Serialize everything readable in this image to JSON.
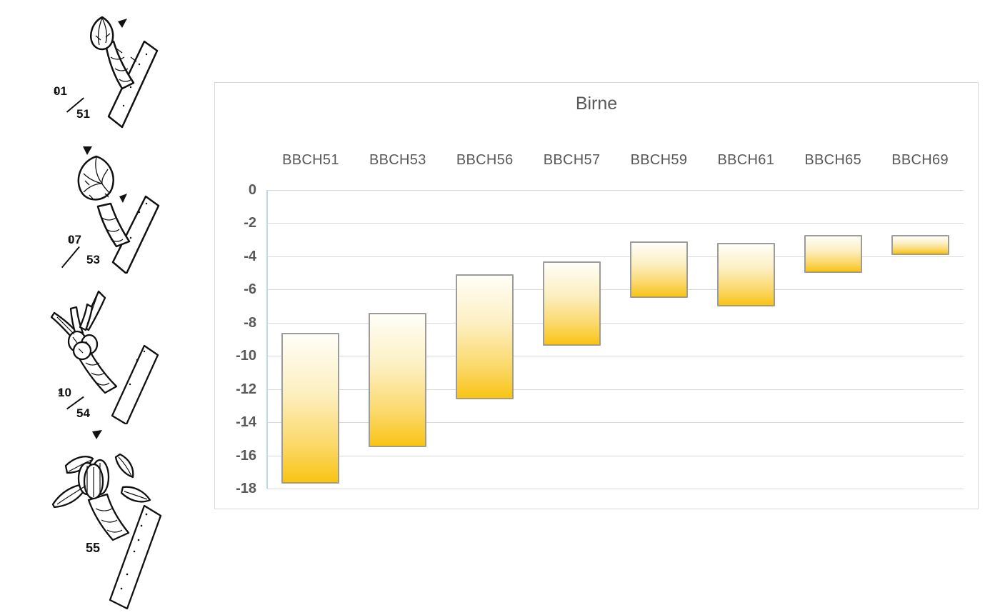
{
  "figure": {
    "description_labels": []
  },
  "stages_panel": {
    "items": [
      {
        "old_code": "01",
        "sup": "1",
        "code": "51",
        "icon": "closed-bud-icon"
      },
      {
        "old_code": "07",
        "sup": "1",
        "code": "53",
        "icon": "swollen-bud-icon"
      },
      {
        "old_code": "10",
        "sup": "1",
        "code": "54",
        "icon": "bud-burst-icon"
      },
      {
        "old_code": "",
        "sup": "",
        "code": "55",
        "icon": "green-bud-cluster-icon"
      }
    ]
  },
  "chart_data": {
    "type": "bar",
    "subtype": "floating_range_columns",
    "title": "Birne",
    "categories": [
      "BBCH51",
      "BBCH53",
      "BBCH56",
      "BBCH57",
      "BBCH59",
      "BBCH61",
      "BBCH65",
      "BBCH69"
    ],
    "series": [
      {
        "ranges": [
          [
            -8.6,
            -17.7
          ],
          [
            -7.4,
            -15.5
          ],
          [
            -5.1,
            -12.6
          ],
          [
            -4.3,
            -9.4
          ],
          [
            -3.1,
            -6.5
          ],
          [
            -3.2,
            -7.0
          ],
          [
            -2.7,
            -5.0
          ],
          [
            -2.7,
            -3.9
          ]
        ]
      }
    ],
    "xlabel": "",
    "ylabel": "",
    "ylim": [
      0,
      -18
    ],
    "yticks": [
      0,
      -2,
      -4,
      -6,
      -8,
      -10,
      -12,
      -14,
      -16,
      -18
    ],
    "grid": true,
    "legend": "none",
    "category_labels_position": "top",
    "colors": {
      "bar_gradient_top": "#FFFEF8",
      "bar_gradient_mid1": "#FCEFC0",
      "bar_gradient_mid2": "#FBD868",
      "bar_gradient_bottom": "#F9C414",
      "bar_border": "#9C9C9C",
      "axis_line": "#BDD7EE",
      "gridline": "#D9D9D9",
      "chart_border": "#D9D9D9",
      "text": "#595959",
      "illustration_ink": "#111111"
    }
  }
}
